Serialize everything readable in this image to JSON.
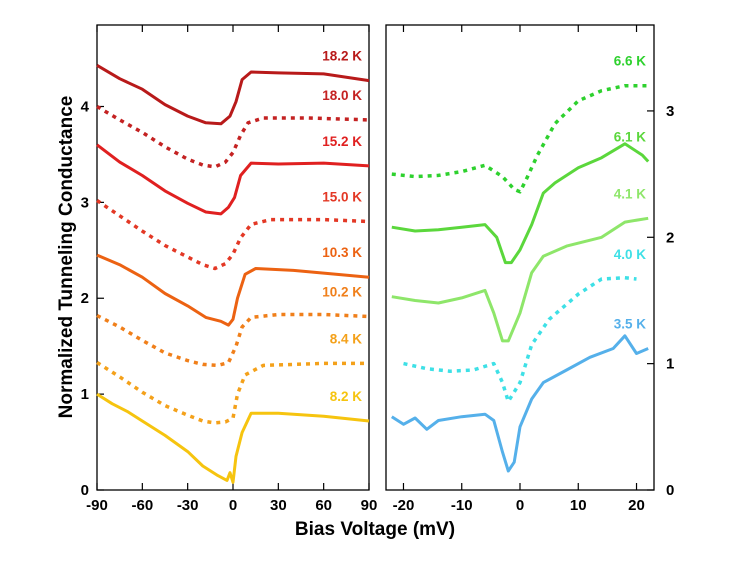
{
  "chart_data": {
    "type": "line",
    "title": "",
    "xlabel": "Bias Voltage (mV)",
    "ylabel": "Normalized Tunneling Conductance",
    "panels": [
      {
        "name": "left",
        "xlim": [
          -90,
          90
        ],
        "ylim": [
          0,
          4.85
        ],
        "y_axis_side": "left",
        "xticks": [
          -90,
          -60,
          -30,
          0,
          30,
          60,
          90
        ],
        "yticks": [
          0,
          1,
          2,
          3,
          4
        ],
        "series": [
          {
            "name": "18.2 K",
            "color": "#b81a1a",
            "style": "solid",
            "points": [
              [
                -90,
                4.43
              ],
              [
                -75,
                4.29
              ],
              [
                -60,
                4.18
              ],
              [
                -45,
                4.02
              ],
              [
                -30,
                3.9
              ],
              [
                -18,
                3.83
              ],
              [
                -8,
                3.82
              ],
              [
                -2,
                3.9
              ],
              [
                2,
                4.05
              ],
              [
                6,
                4.28
              ],
              [
                12,
                4.36
              ],
              [
                30,
                4.35
              ],
              [
                60,
                4.34
              ],
              [
                90,
                4.27
              ]
            ]
          },
          {
            "name": "18.0 K",
            "color": "#c42222",
            "style": "dotted",
            "points": [
              [
                -90,
                4.0
              ],
              [
                -75,
                3.86
              ],
              [
                -60,
                3.73
              ],
              [
                -45,
                3.58
              ],
              [
                -30,
                3.45
              ],
              [
                -20,
                3.39
              ],
              [
                -12,
                3.37
              ],
              [
                -5,
                3.42
              ],
              [
                0,
                3.52
              ],
              [
                5,
                3.7
              ],
              [
                10,
                3.83
              ],
              [
                20,
                3.88
              ],
              [
                50,
                3.88
              ],
              [
                90,
                3.86
              ]
            ]
          },
          {
            "name": "15.2 K",
            "color": "#e02020",
            "style": "solid",
            "points": [
              [
                -90,
                3.6
              ],
              [
                -75,
                3.42
              ],
              [
                -60,
                3.28
              ],
              [
                -45,
                3.12
              ],
              [
                -30,
                2.99
              ],
              [
                -18,
                2.9
              ],
              [
                -8,
                2.88
              ],
              [
                -3,
                2.95
              ],
              [
                1,
                3.05
              ],
              [
                5,
                3.28
              ],
              [
                12,
                3.41
              ],
              [
                30,
                3.4
              ],
              [
                60,
                3.41
              ],
              [
                90,
                3.38
              ]
            ]
          },
          {
            "name": "15.0 K",
            "color": "#e33825",
            "style": "dotted",
            "points": [
              [
                -90,
                3.02
              ],
              [
                -75,
                2.86
              ],
              [
                -60,
                2.7
              ],
              [
                -45,
                2.55
              ],
              [
                -30,
                2.43
              ],
              [
                -20,
                2.35
              ],
              [
                -12,
                2.31
              ],
              [
                -5,
                2.36
              ],
              [
                0,
                2.46
              ],
              [
                5,
                2.63
              ],
              [
                12,
                2.77
              ],
              [
                25,
                2.82
              ],
              [
                60,
                2.82
              ],
              [
                90,
                2.8
              ]
            ]
          },
          {
            "name": "10.3 K",
            "color": "#ec6212",
            "style": "solid",
            "points": [
              [
                -90,
                2.45
              ],
              [
                -75,
                2.35
              ],
              [
                -60,
                2.22
              ],
              [
                -45,
                2.05
              ],
              [
                -30,
                1.92
              ],
              [
                -18,
                1.8
              ],
              [
                -8,
                1.76
              ],
              [
                -3,
                1.72
              ],
              [
                0,
                1.78
              ],
              [
                3,
                2.0
              ],
              [
                8,
                2.25
              ],
              [
                15,
                2.31
              ],
              [
                40,
                2.29
              ],
              [
                90,
                2.22
              ]
            ]
          },
          {
            "name": "10.2 K",
            "color": "#f07f1a",
            "style": "dotted",
            "points": [
              [
                -90,
                1.82
              ],
              [
                -75,
                1.7
              ],
              [
                -60,
                1.56
              ],
              [
                -45,
                1.43
              ],
              [
                -30,
                1.35
              ],
              [
                -20,
                1.31
              ],
              [
                -10,
                1.3
              ],
              [
                -3,
                1.33
              ],
              [
                2,
                1.5
              ],
              [
                6,
                1.7
              ],
              [
                12,
                1.8
              ],
              [
                30,
                1.83
              ],
              [
                60,
                1.83
              ],
              [
                90,
                1.81
              ]
            ]
          },
          {
            "name": "8.4 K",
            "color": "#f4a11a",
            "style": "dotted",
            "points": [
              [
                -90,
                1.33
              ],
              [
                -75,
                1.18
              ],
              [
                -60,
                1.02
              ],
              [
                -45,
                0.88
              ],
              [
                -30,
                0.78
              ],
              [
                -20,
                0.72
              ],
              [
                -12,
                0.7
              ],
              [
                -5,
                0.71
              ],
              [
                0,
                0.75
              ],
              [
                3,
                1.0
              ],
              [
                8,
                1.2
              ],
              [
                20,
                1.3
              ],
              [
                60,
                1.32
              ],
              [
                90,
                1.32
              ]
            ]
          },
          {
            "name": "8.2 K",
            "color": "#f6c40f",
            "style": "solid",
            "points": [
              [
                -90,
                1.0
              ],
              [
                -80,
                0.9
              ],
              [
                -70,
                0.82
              ],
              [
                -60,
                0.72
              ],
              [
                -45,
                0.57
              ],
              [
                -30,
                0.4
              ],
              [
                -20,
                0.25
              ],
              [
                -10,
                0.15
              ],
              [
                -4,
                0.1
              ],
              [
                -2,
                0.18
              ],
              [
                0,
                0.08
              ],
              [
                2,
                0.35
              ],
              [
                6,
                0.6
              ],
              [
                12,
                0.8
              ],
              [
                30,
                0.8
              ],
              [
                60,
                0.77
              ],
              [
                90,
                0.72
              ]
            ]
          }
        ],
        "annotations": [
          "18.2 K",
          "18.0 K",
          "15.2 K",
          "15.0 K",
          "10.3 K",
          "10.2 K",
          "8.4 K",
          "8.2 K"
        ]
      },
      {
        "name": "right",
        "xlim": [
          -23,
          23
        ],
        "ylim": [
          0,
          3.68
        ],
        "y_axis_side": "right",
        "xticks": [
          -20,
          -10,
          0,
          10,
          20
        ],
        "yticks": [
          0,
          1,
          2,
          3
        ],
        "series": [
          {
            "name": "6.6 K",
            "color": "#2ed12e",
            "style": "dotted",
            "points": [
              [
                -22,
                2.5
              ],
              [
                -18,
                2.48
              ],
              [
                -14,
                2.49
              ],
              [
                -10,
                2.52
              ],
              [
                -6,
                2.57
              ],
              [
                -3,
                2.48
              ],
              [
                -1,
                2.38
              ],
              [
                0,
                2.36
              ],
              [
                1,
                2.45
              ],
              [
                3,
                2.65
              ],
              [
                6,
                2.9
              ],
              [
                10,
                3.08
              ],
              [
                14,
                3.16
              ],
              [
                18,
                3.2
              ],
              [
                22,
                3.2
              ]
            ]
          },
          {
            "name": "6.1 K",
            "color": "#5bd73c",
            "style": "solid",
            "points": [
              [
                -22,
                2.08
              ],
              [
                -18,
                2.05
              ],
              [
                -14,
                2.06
              ],
              [
                -10,
                2.08
              ],
              [
                -6,
                2.1
              ],
              [
                -4,
                2.0
              ],
              [
                -2.5,
                1.8
              ],
              [
                -1.5,
                1.8
              ],
              [
                0,
                1.9
              ],
              [
                2,
                2.1
              ],
              [
                4,
                2.35
              ],
              [
                6,
                2.43
              ],
              [
                10,
                2.55
              ],
              [
                14,
                2.63
              ],
              [
                18,
                2.74
              ],
              [
                21,
                2.65
              ],
              [
                22,
                2.6
              ]
            ]
          },
          {
            "name": "4.1 K",
            "color": "#8ee66a",
            "style": "solid",
            "points": [
              [
                -22,
                1.53
              ],
              [
                -18,
                1.5
              ],
              [
                -14,
                1.48
              ],
              [
                -10,
                1.52
              ],
              [
                -6,
                1.58
              ],
              [
                -4.5,
                1.4
              ],
              [
                -3,
                1.18
              ],
              [
                -2,
                1.18
              ],
              [
                0,
                1.4
              ],
              [
                2,
                1.72
              ],
              [
                4,
                1.85
              ],
              [
                8,
                1.93
              ],
              [
                14,
                2.0
              ],
              [
                18,
                2.12
              ],
              [
                22,
                2.15
              ]
            ]
          },
          {
            "name": "4.0 K",
            "color": "#3ee0e6",
            "style": "dotted",
            "points": [
              [
                -20,
                1.0
              ],
              [
                -16,
                0.96
              ],
              [
                -12,
                0.94
              ],
              [
                -8,
                0.95
              ],
              [
                -4.5,
                1.0
              ],
              [
                -3,
                0.85
              ],
              [
                -2,
                0.7
              ],
              [
                0,
                0.85
              ],
              [
                2,
                1.15
              ],
              [
                5,
                1.35
              ],
              [
                10,
                1.55
              ],
              [
                14,
                1.67
              ],
              [
                18,
                1.68
              ],
              [
                20,
                1.67
              ]
            ]
          },
          {
            "name": "3.5 K",
            "color": "#55b0ea",
            "style": "solid",
            "points": [
              [
                -22,
                0.58
              ],
              [
                -20,
                0.52
              ],
              [
                -18,
                0.57
              ],
              [
                -16,
                0.48
              ],
              [
                -14,
                0.55
              ],
              [
                -10,
                0.58
              ],
              [
                -6,
                0.6
              ],
              [
                -4.5,
                0.55
              ],
              [
                -3,
                0.3
              ],
              [
                -2,
                0.15
              ],
              [
                -1,
                0.22
              ],
              [
                0,
                0.5
              ],
              [
                2,
                0.72
              ],
              [
                4,
                0.85
              ],
              [
                8,
                0.95
              ],
              [
                12,
                1.05
              ],
              [
                16,
                1.12
              ],
              [
                18,
                1.22
              ],
              [
                20,
                1.08
              ],
              [
                22,
                1.12
              ]
            ]
          }
        ],
        "annotations": [
          "6.6 K",
          "6.1 K",
          "4.1 K",
          "4.0 K",
          "3.5 K"
        ]
      }
    ]
  }
}
